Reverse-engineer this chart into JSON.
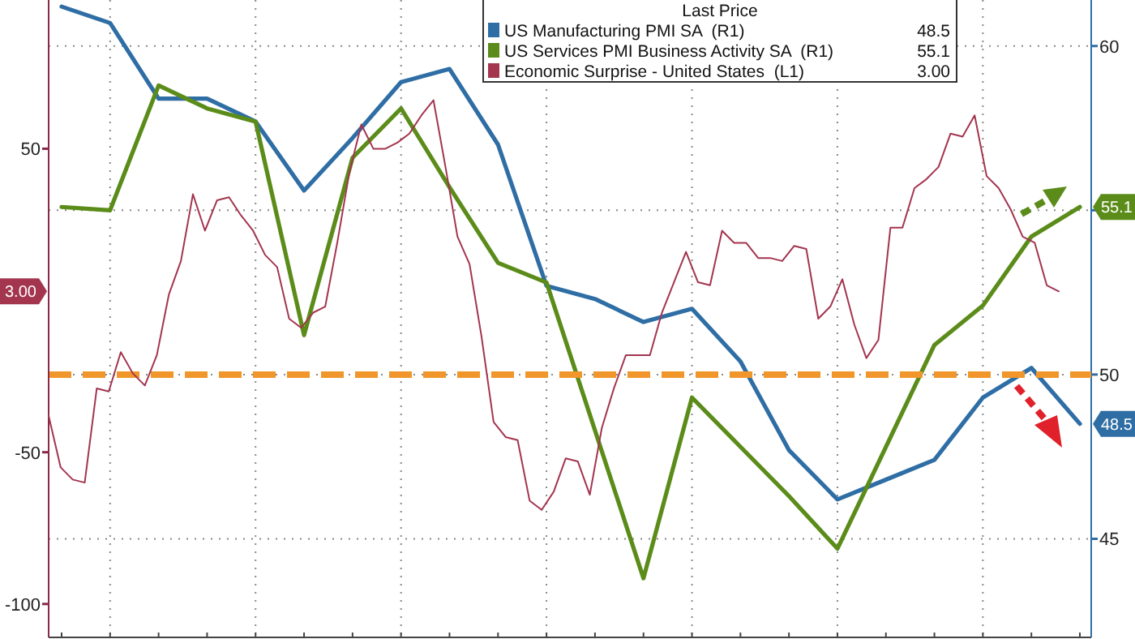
{
  "chart_data": [
    {
      "type": "line",
      "legend_title": "Last Price",
      "legend": "top right",
      "grid": true,
      "categories": [
        null,
        null,
        null,
        null,
        null,
        null,
        null,
        null,
        null,
        null,
        null,
        null,
        null,
        null,
        null,
        null,
        null,
        null,
        null,
        null,
        null,
        null
      ],
      "ylim": [
        42,
        61.4
      ],
      "yticks": [
        45,
        50,
        {
          "value": 55,
          "label": null
        },
        60
      ],
      "ref_lines": [
        {
          "axis": "y",
          "value": 50,
          "color": "#f0962a",
          "line_style": "dashed"
        }
      ],
      "series": [
        {
          "name": "US Manufacturing PMI SA  (R1)",
          "color": "#2f6ea5",
          "values": [
            61.2,
            60.7,
            58.4,
            58.4,
            57.7,
            55.6,
            57.2,
            58.9,
            59.3,
            57.0,
            52.7,
            52.3,
            51.6,
            52.0,
            50.4,
            47.7,
            46.2,
            46.8,
            47.4,
            49.3,
            50.2,
            48.5
          ],
          "value_labels": [
            null,
            null,
            null,
            null,
            null,
            null,
            null,
            null,
            null,
            null,
            null,
            null,
            null,
            null,
            null,
            null,
            null,
            null,
            null,
            null,
            null,
            "48.5"
          ]
        },
        {
          "name": "US Services PMI Business Activity SA  (R1)",
          "color": "#5b8c1a",
          "values": [
            55.1,
            55.0,
            58.8,
            58.1,
            57.7,
            51.2,
            56.6,
            58.1,
            55.7,
            53.4,
            52.8,
            48.3,
            43.8,
            49.3,
            47.8,
            46.3,
            44.7,
            47.8,
            50.9,
            52.1,
            54.2,
            55.1
          ],
          "value_labels": [
            null,
            null,
            null,
            null,
            null,
            null,
            null,
            null,
            null,
            null,
            null,
            null,
            null,
            null,
            null,
            null,
            null,
            null,
            null,
            null,
            null,
            "55.1"
          ]
        }
      ]
    },
    {
      "type": "line",
      "legend": "top right",
      "categories": [
        null,
        null,
        null,
        null,
        null,
        null,
        null,
        null,
        null,
        null,
        null,
        null,
        null,
        null,
        null,
        null,
        null,
        null,
        null,
        null,
        null,
        null,
        null,
        null,
        null,
        null,
        null,
        null,
        null,
        null,
        null,
        null,
        null,
        null,
        null,
        null,
        null,
        null,
        null,
        null,
        null,
        null,
        null,
        null,
        null,
        null,
        null,
        null,
        null,
        null,
        null,
        null,
        null,
        null,
        null,
        null,
        null,
        null,
        null,
        null,
        null,
        null,
        null,
        null,
        null,
        null,
        null,
        null,
        null,
        null,
        null,
        null,
        null,
        null,
        null,
        null,
        null,
        null,
        null,
        null,
        null,
        null,
        null,
        null,
        null
      ],
      "ylim": [
        -111,
        99
      ],
      "yticks": [
        -100,
        -50,
        50
      ],
      "annotations": [
        {
          "text": "3.00",
          "y": 3
        }
      ],
      "series": [
        {
          "name": "Economic Surprise - United States  (L1)",
          "color": "#a3354f",
          "values": [
            -38,
            -55,
            -59,
            -60,
            -29,
            -30,
            -17,
            -24,
            -28,
            -18,
            2,
            13,
            35,
            23,
            33,
            34,
            28,
            23,
            15,
            11,
            -6,
            -9,
            -4,
            -2,
            19,
            42,
            58,
            50,
            50,
            52,
            55,
            61,
            66,
            44,
            21,
            12,
            -12,
            -40,
            -45,
            -46,
            -66,
            -69,
            -63,
            -52,
            -53,
            -64,
            -42,
            -29,
            -18,
            -18,
            -18,
            -4,
            6,
            16,
            6,
            5,
            23,
            19,
            19,
            14,
            14,
            13,
            18,
            17,
            -6,
            -2,
            7,
            -8,
            -19,
            -13,
            24,
            24,
            37,
            40,
            44,
            55,
            54,
            61,
            41,
            37,
            30,
            21,
            19,
            5,
            3
          ],
          "value_labels": [
            null,
            null,
            null,
            null,
            null,
            null,
            null,
            null,
            null,
            null,
            null,
            null,
            null,
            null,
            null,
            null,
            null,
            null,
            null,
            null,
            null,
            null,
            null,
            null,
            null,
            null,
            null,
            null,
            null,
            null,
            null,
            null,
            null,
            null,
            null,
            null,
            null,
            null,
            null,
            null,
            null,
            null,
            null,
            null,
            null,
            null,
            null,
            null,
            null,
            null,
            null,
            null,
            null,
            null,
            null,
            null,
            null,
            null,
            null,
            null,
            null,
            null,
            null,
            null,
            null,
            null,
            null,
            null,
            null,
            null,
            null,
            null,
            null,
            null,
            null,
            null,
            null,
            null,
            null,
            null,
            null,
            null,
            null,
            null,
            null
          ]
        }
      ]
    }
  ]
}
